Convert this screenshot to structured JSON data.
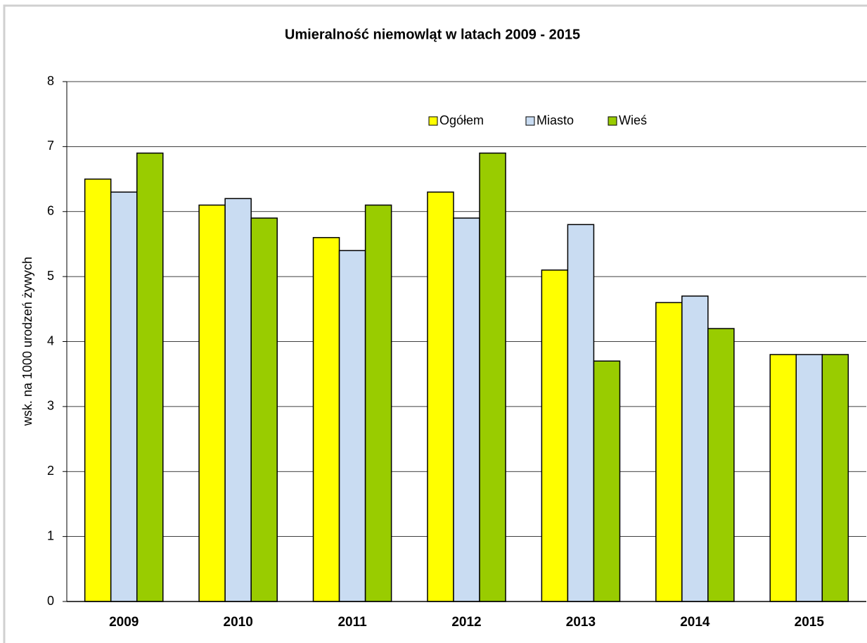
{
  "chart_data": {
    "type": "bar",
    "title": "Umieralność niemowląt w latach 2009 - 2015",
    "y_label": "wsk. na 1000 urodzeń żywych",
    "categories": [
      "2009",
      "2010",
      "2011",
      "2012",
      "2013",
      "2014",
      "2015"
    ],
    "series": [
      {
        "name": "Ogółem",
        "color": "#ffff00",
        "values": [
          6.5,
          6.1,
          5.6,
          6.3,
          5.1,
          4.6,
          3.8
        ]
      },
      {
        "name": "Miasto",
        "color": "#c9dcf2",
        "values": [
          6.3,
          6.2,
          5.4,
          5.9,
          5.8,
          4.7,
          3.8
        ]
      },
      {
        "name": "Wieś",
        "color": "#99cc00",
        "values": [
          6.9,
          5.9,
          6.1,
          6.9,
          3.7,
          4.2,
          3.8
        ]
      }
    ],
    "ylim": [
      0,
      8
    ],
    "yticks": [
      0,
      1,
      2,
      3,
      4,
      5,
      6,
      7,
      8
    ],
    "grid": true,
    "legend": "top"
  }
}
